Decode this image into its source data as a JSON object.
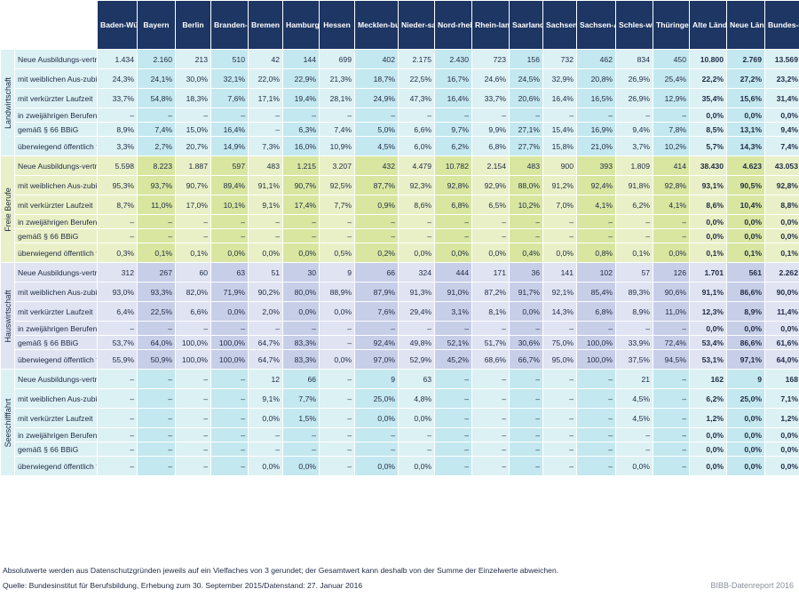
{
  "columns": [
    "Baden-Württemberg",
    "Bayern",
    "Berlin",
    "Branden-burg",
    "Bremen",
    "Hamburg",
    "Hessen",
    "Mecklen-burg-Vor-pommern",
    "Nieder-sachsen",
    "Nord-rhein-West-falen",
    "Rhein-land-Pfalz",
    "Saarland",
    "Sachsen",
    "Sachsen-Anhalt",
    "Schles-wig-Holstein",
    "Thüringen",
    "Alte Länder",
    "Neue Länder und Berlin",
    "Bundes-gebiet"
  ],
  "groups": [
    {
      "name": "Landwirtschaft",
      "rows": [
        {
          "label": "Neue Ausbildungs-verträge",
          "values": [
            "1.434",
            "2.160",
            "213",
            "510",
            "42",
            "144",
            "699",
            "402",
            "2.175",
            "2.430",
            "723",
            "156",
            "732",
            "462",
            "834",
            "450",
            "10.800",
            "2.769",
            "13.569"
          ]
        },
        {
          "label": "mit weiblichen Aus-zubildenden",
          "values": [
            "24,3%",
            "24,1%",
            "30,0%",
            "32,1%",
            "22,0%",
            "22,9%",
            "21,3%",
            "18,7%",
            "22,5%",
            "16,7%",
            "24,6%",
            "24,5%",
            "32,9%",
            "20,8%",
            "26,9%",
            "25,4%",
            "22,2%",
            "27,2%",
            "23,2%"
          ]
        },
        {
          "label": "mit verkürzter Laufzeit",
          "values": [
            "33,7%",
            "54,8%",
            "18,3%",
            "7,6%",
            "17,1%",
            "19,4%",
            "28,1%",
            "24,9%",
            "47,3%",
            "16,4%",
            "33,7%",
            "20,6%",
            "16,4%",
            "16,5%",
            "26,9%",
            "12,9%",
            "35,4%",
            "15,6%",
            "31,4%"
          ]
        },
        {
          "label": "in zweijährigen Berufen",
          "values": [
            "–",
            "–",
            "–",
            "–",
            "–",
            "–",
            "–",
            "–",
            "–",
            "–",
            "–",
            "–",
            "–",
            "–",
            "–",
            "–",
            "0,0%",
            "0,0%",
            "0,0%"
          ]
        },
        {
          "label": "gemäß § 66 BBiG",
          "values": [
            "8,9%",
            "7,4%",
            "15,0%",
            "16,4%",
            "–",
            "6,3%",
            "7,4%",
            "5,0%",
            "6,6%",
            "9,7%",
            "9,9%",
            "27,1%",
            "15,4%",
            "16,9%",
            "9,4%",
            "7,8%",
            "8,5%",
            "13,1%",
            "9,4%"
          ]
        },
        {
          "label": "überwiegend öffentlich finanziert",
          "values": [
            "3,3%",
            "2,7%",
            "20,7%",
            "14,9%",
            "7,3%",
            "16,0%",
            "10,9%",
            "4,5%",
            "6,0%",
            "6,2%",
            "6,8%",
            "27,7%",
            "15,8%",
            "21,0%",
            "3,7%",
            "10,2%",
            "5,7%",
            "14,3%",
            "7,4%"
          ]
        }
      ]
    },
    {
      "name": "Freie Berufe",
      "rows": [
        {
          "label": "Neue Ausbildungs-verträge",
          "values": [
            "5.598",
            "8.223",
            "1.887",
            "597",
            "483",
            "1.215",
            "3.207",
            "432",
            "4.479",
            "10.782",
            "2.154",
            "483",
            "900",
            "393",
            "1.809",
            "414",
            "38.430",
            "4.623",
            "43.053"
          ]
        },
        {
          "label": "mit weiblichen Aus-zubildenden",
          "values": [
            "95,3%",
            "93,7%",
            "90,7%",
            "89,4%",
            "91,1%",
            "90,7%",
            "92,5%",
            "87,7%",
            "92,3%",
            "92,8%",
            "92,9%",
            "88,0%",
            "91,2%",
            "92,4%",
            "91,8%",
            "92,8%",
            "93,1%",
            "90,5%",
            "92,8%"
          ]
        },
        {
          "label": "mit verkürzter Laufzeit",
          "values": [
            "8,7%",
            "11,0%",
            "17,0%",
            "10,1%",
            "9,1%",
            "17,4%",
            "7,7%",
            "0,9%",
            "8,6%",
            "6,8%",
            "6,5%",
            "10,2%",
            "7,0%",
            "4,1%",
            "6,2%",
            "4,1%",
            "8,6%",
            "10,4%",
            "8,8%"
          ]
        },
        {
          "label": "in zweijährigen Berufen",
          "values": [
            "–",
            "–",
            "–",
            "–",
            "–",
            "–",
            "–",
            "–",
            "–",
            "–",
            "–",
            "–",
            "–",
            "–",
            "–",
            "–",
            "0,0%",
            "0,0%",
            "0,0%"
          ]
        },
        {
          "label": "gemäß § 66 BBiG",
          "values": [
            "–",
            "–",
            "–",
            "–",
            "–",
            "–",
            "–",
            "–",
            "–",
            "–",
            "–",
            "–",
            "–",
            "–",
            "–",
            "–",
            "0,0%",
            "0,0%",
            "0,0%"
          ]
        },
        {
          "label": "überwiegend öffentlich finanziert",
          "values": [
            "0,3%",
            "0,1%",
            "0,1%",
            "0,0%",
            "0,0%",
            "0,0%",
            "0,5%",
            "0,2%",
            "0,0%",
            "0,0%",
            "0,0%",
            "0,4%",
            "0,0%",
            "0,8%",
            "0,1%",
            "0,0%",
            "0,1%",
            "0,1%",
            "0,1%"
          ]
        }
      ]
    },
    {
      "name": "Hauswirtschaft",
      "rows": [
        {
          "label": "Neue Ausbildungs-verträge",
          "values": [
            "312",
            "267",
            "60",
            "63",
            "51",
            "30",
            "9",
            "66",
            "324",
            "444",
            "171",
            "36",
            "141",
            "102",
            "57",
            "126",
            "1.701",
            "561",
            "2.262"
          ]
        },
        {
          "label": "mit weiblichen Aus-zubildenden",
          "values": [
            "93,0%",
            "93,3%",
            "82,0%",
            "71,9%",
            "90,2%",
            "80,0%",
            "88,9%",
            "87,9%",
            "91,3%",
            "91,0%",
            "87,2%",
            "91,7%",
            "92,1%",
            "85,4%",
            "89,3%",
            "90,6%",
            "91,1%",
            "86,6%",
            "90,0%"
          ]
        },
        {
          "label": "mit verkürzter Laufzeit",
          "values": [
            "6,4%",
            "22,5%",
            "6,6%",
            "0,0%",
            "2,0%",
            "0,0%",
            "0,0%",
            "7,6%",
            "29,4%",
            "3,1%",
            "8,1%",
            "0,0%",
            "14,3%",
            "6,8%",
            "8,9%",
            "11,0%",
            "12,3%",
            "8,9%",
            "11,4%"
          ]
        },
        {
          "label": "in zweijährigen Berufen",
          "values": [
            "–",
            "–",
            "–",
            "–",
            "–",
            "–",
            "–",
            "–",
            "–",
            "–",
            "–",
            "–",
            "–",
            "–",
            "–",
            "–",
            "0,0%",
            "0,0%",
            "0,0%"
          ]
        },
        {
          "label": "gemäß § 66 BBiG",
          "values": [
            "53,7%",
            "64,0%",
            "100,0%",
            "100,0%",
            "64,7%",
            "83,3%",
            "–",
            "92,4%",
            "49,8%",
            "52,1%",
            "51,7%",
            "30,6%",
            "75,0%",
            "100,0%",
            "33,9%",
            "72,4%",
            "53,4%",
            "86,6%",
            "61,6%"
          ]
        },
        {
          "label": "überwiegend öffentlich finanziert",
          "values": [
            "55,9%",
            "50,9%",
            "100,0%",
            "100,0%",
            "64,7%",
            "83,3%",
            "0,0%",
            "97,0%",
            "52,9%",
            "45,2%",
            "68,6%",
            "66,7%",
            "95,0%",
            "100,0%",
            "37,5%",
            "94,5%",
            "53,1%",
            "97,1%",
            "64,0%"
          ]
        }
      ]
    },
    {
      "name": "Seeschifffahrt",
      "rows": [
        {
          "label": "Neue Ausbildungs-verträge",
          "values": [
            "–",
            "–",
            "–",
            "–",
            "12",
            "66",
            "–",
            "9",
            "63",
            "–",
            "–",
            "–",
            "–",
            "–",
            "21",
            "–",
            "162",
            "9",
            "168"
          ]
        },
        {
          "label": "mit weiblichen Aus-zubildenden",
          "values": [
            "–",
            "–",
            "–",
            "–",
            "9,1%",
            "7,7%",
            "–",
            "25,0%",
            "4,8%",
            "–",
            "–",
            "–",
            "–",
            "–",
            "4,5%",
            "–",
            "6,2%",
            "25,0%",
            "7,1%"
          ]
        },
        {
          "label": "mit verkürzter Laufzeit",
          "values": [
            "–",
            "–",
            "–",
            "–",
            "0,0%",
            "1,5%",
            "–",
            "0,0%",
            "0,0%",
            "–",
            "–",
            "–",
            "–",
            "–",
            "4,5%",
            "–",
            "1,2%",
            "0,0%",
            "1,2%"
          ]
        },
        {
          "label": "in zweijährigen Berufen",
          "values": [
            "–",
            "–",
            "–",
            "–",
            "–",
            "–",
            "–",
            "–",
            "–",
            "–",
            "–",
            "–",
            "–",
            "–",
            "–",
            "–",
            "0,0%",
            "0,0%",
            "0,0%"
          ]
        },
        {
          "label": "gemäß § 66 BBiG",
          "values": [
            "–",
            "–",
            "–",
            "–",
            "–",
            "–",
            "–",
            "–",
            "–",
            "–",
            "–",
            "–",
            "–",
            "–",
            "–",
            "–",
            "0,0%",
            "0,0%",
            "0,0%"
          ]
        },
        {
          "label": "überwiegend öffentlich finanziert",
          "values": [
            "–",
            "–",
            "–",
            "–",
            "0,0%",
            "0,0%",
            "–",
            "0,0%",
            "0,0%",
            "–",
            "–",
            "–",
            "–",
            "–",
            "0,0%",
            "–",
            "0,0%",
            "0,0%",
            "0,0%"
          ]
        }
      ]
    }
  ],
  "footnote": "Absolutwerte werden aus Datenschutzgründen jeweils auf ein Vielfaches von 3 gerundet; der Gesamtwert kann deshalb von der Summe der Einzelwerte abweichen.",
  "source": "Quelle: Bundesinstitut für Berufsbildung, Erhebung zum 30. September 2015/Datenstand: 27. Januar 2016",
  "credit": "BIBB-Datenreport 2016"
}
